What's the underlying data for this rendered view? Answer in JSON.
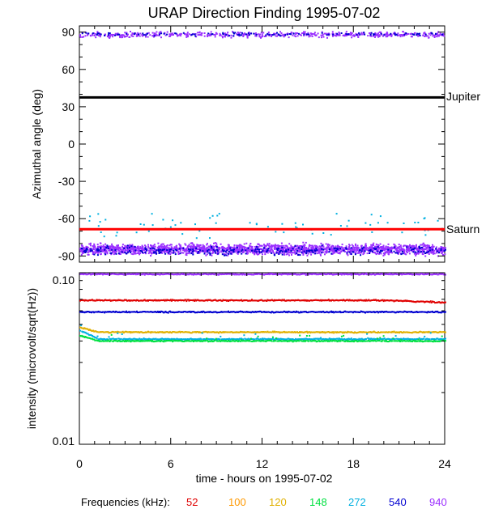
{
  "chart_data": [
    {
      "type": "scatter",
      "title": "URAP Direction Finding  1995-07-02",
      "ylabel": "Azimuthal angle (deg)",
      "xlim": [
        0,
        24
      ],
      "ylim": [
        -95,
        95
      ],
      "y_ticks": [
        90,
        60,
        30,
        0,
        -30,
        -60,
        -90
      ],
      "y_tick_labels": [
        "90",
        "60",
        "30",
        "0",
        "-30",
        "-60",
        "-90"
      ],
      "reference_lines": [
        {
          "name": "Jupiter",
          "y": 37.5,
          "color": "#000000"
        },
        {
          "name": "Saturn",
          "y": -68.5,
          "color": "#ff0000"
        }
      ],
      "series": [
        {
          "frequency_khz": 940,
          "band_center_y": 88.5,
          "band_spread": 3,
          "band_center_y2": -84,
          "band_spread2": 6
        },
        {
          "frequency_khz": 540,
          "band_center_y": 89,
          "band_spread": 2,
          "band_center_y2": -85,
          "band_spread2": 5
        },
        {
          "frequency_khz": 272,
          "scattered_y_range": [
            -75,
            -55
          ]
        }
      ]
    },
    {
      "type": "scatter",
      "xlabel": "time - hours on 1995-07-02",
      "ylabel": "intensity (microvolt/sqrt(Hz))",
      "xlim": [
        0,
        24
      ],
      "ylim": [
        0.01,
        0.1
      ],
      "yscale": "log",
      "x_ticks": [
        0,
        6,
        12,
        18,
        24
      ],
      "x_tick_labels": [
        "0",
        "6",
        "12",
        "18",
        "24"
      ],
      "y_tick_labels_shown": [
        "0.10",
        "0.01"
      ],
      "series": [
        {
          "frequency_khz": 940,
          "level": 0.098
        },
        {
          "frequency_khz": 52,
          "level": 0.069,
          "end_level": 0.067
        },
        {
          "frequency_khz": 540,
          "level": 0.059
        },
        {
          "frequency_khz": 120,
          "level": 0.045,
          "start_level": 0.048
        },
        {
          "frequency_khz": 272,
          "level": 0.041,
          "start_level": 0.046
        },
        {
          "frequency_khz": 148,
          "level": 0.04,
          "start_level": 0.043
        }
      ]
    }
  ],
  "legend": {
    "label": "Frequencies (kHz):",
    "items": [
      {
        "label": "52",
        "color": "#e00000"
      },
      {
        "label": "100",
        "color": "#ff9900"
      },
      {
        "label": "120",
        "color": "#e0b000"
      },
      {
        "label": "148",
        "color": "#00e040"
      },
      {
        "label": "272",
        "color": "#00b0e0"
      },
      {
        "label": "540",
        "color": "#0000d0"
      },
      {
        "label": "940",
        "color": "#9b30ff"
      }
    ]
  }
}
